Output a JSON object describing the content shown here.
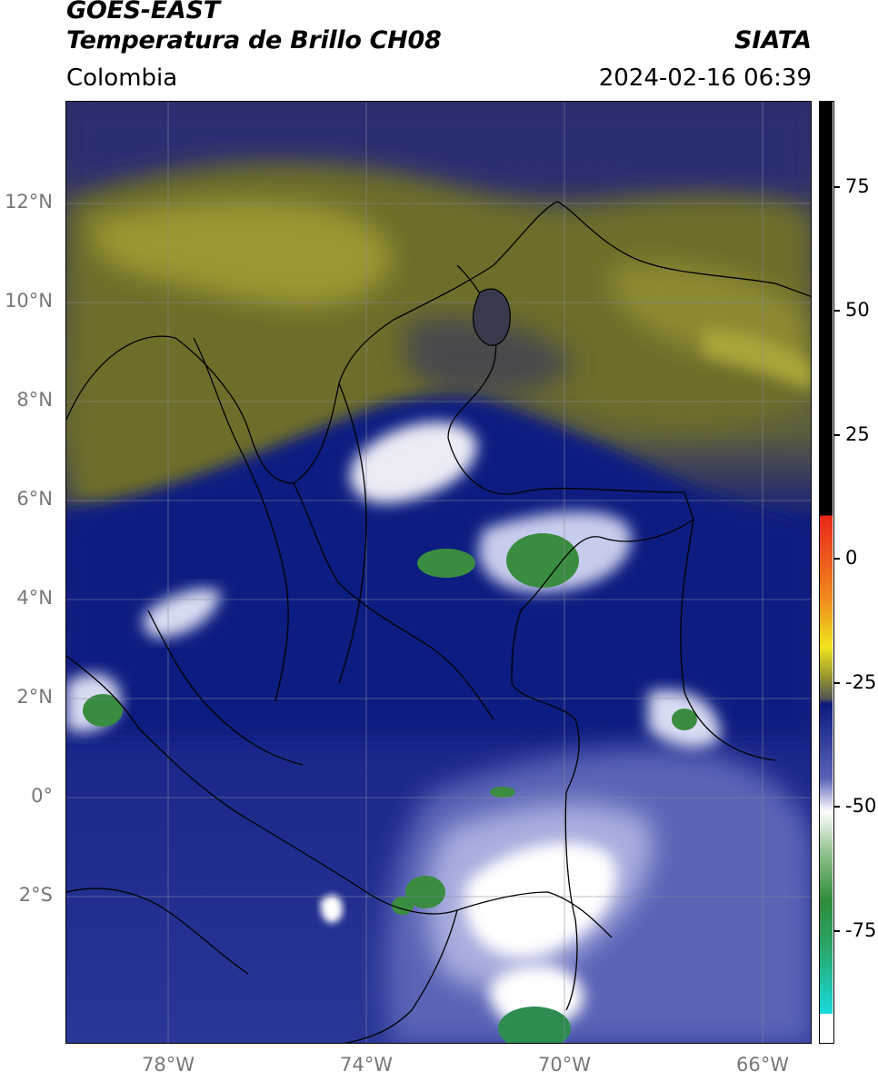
{
  "header": {
    "satellite": "GOES-EAST",
    "product": "Temperatura de Brillo CH08",
    "source": "SIATA",
    "region": "Colombia",
    "datetime": "2024-02-16 06:39"
  },
  "map": {
    "latitude_labels": [
      "12°N",
      "10°N",
      "8°N",
      "6°N",
      "4°N",
      "2°N",
      "0°",
      "2°S"
    ],
    "longitude_labels": [
      "78°W",
      "74°W",
      "70°W",
      "66°W"
    ],
    "extent": {
      "lon_min": -80,
      "lon_max": -65,
      "lat_min": -5,
      "lat_max": 14
    }
  },
  "colorbar": {
    "ticks": [
      "75",
      "50",
      "25",
      "0",
      "-25",
      "-50",
      "-75"
    ],
    "colors": {
      "warm_max": "#000000",
      "red": "#e8261a",
      "orange": "#f08c1e",
      "yellow": "#f0e41e",
      "olive": "#9c9a2e",
      "navy": "#0c1a7e",
      "lavender": "#a8aede",
      "white": "#ffffff",
      "green": "#2e8c3a",
      "cyan": "#18dadd"
    }
  }
}
